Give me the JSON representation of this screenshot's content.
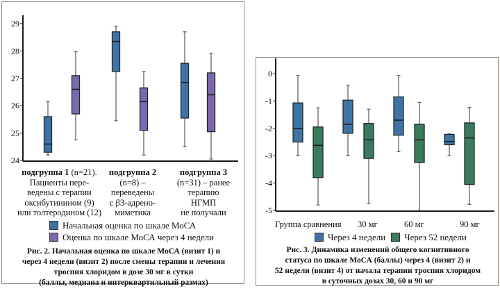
{
  "chart_data": [
    {
      "type": "box",
      "id": "fig2",
      "ylim": [
        24,
        29
      ],
      "yticks": [
        24,
        25,
        26,
        27,
        28,
        29
      ],
      "categories": [
        {
          "bold": "подгруппа 1",
          "lines": [
            " (n=21).",
            "Пациенты пере-",
            "ведены с терапии",
            "оксибутинином (9)",
            "или толтеродином (12)"
          ]
        },
        {
          "bold": "подгруппа 2",
          "lines": [
            "(n=8) –",
            "переведены",
            "с β3-адрено-",
            "миметика"
          ]
        },
        {
          "bold": "подгруппа 3",
          "lines": [
            "(n=31) – ранее",
            "терапию",
            "НГМП",
            "не получали"
          ]
        }
      ],
      "series": [
        {
          "name": "Начальная оценка по шкале МоСА",
          "color": "#3f73a3",
          "boxes": [
            {
              "min": 24.2,
              "q1": 24.3,
              "median": 24.6,
              "q3": 25.6,
              "max": 26.15
            },
            {
              "min": 25.45,
              "q1": 27.25,
              "median": 28.35,
              "q3": 28.7,
              "max": 28.9
            },
            {
              "min": 24.5,
              "q1": 25.55,
              "median": 26.85,
              "q3": 27.55,
              "max": 28.7
            }
          ]
        },
        {
          "name": "Оценка по шкале МоСА через 4 недели",
          "color": "#7b68ae",
          "boxes": [
            {
              "min": 24.75,
              "q1": 25.7,
              "median": 26.6,
              "q3": 27.1,
              "max": 27.97
            },
            {
              "min": 24.2,
              "q1": 25.1,
              "median": 26.15,
              "q3": 26.65,
              "max": 27.25
            },
            {
              "min": 24.05,
              "q1": 25.05,
              "median": 26.4,
              "q3": 27.2,
              "max": 27.92
            }
          ]
        }
      ],
      "caption": [
        "Рис. 2. Начальная оценка по шкале МоСА (визит 1) и",
        "через 4 недели (визит 2) после смены терапии и лечения",
        "троспия хлоридом в дозе 30 мг в сутки",
        "(баллы, медиана и интерквартильный размах)"
      ]
    },
    {
      "type": "box",
      "id": "fig3",
      "ylim": [
        -5,
        0
      ],
      "yticks": [
        0,
        -1,
        -2,
        -3,
        -4,
        -5
      ],
      "categories": [
        "Группа сравнения",
        "30 мг",
        "60 мг",
        "90 мг"
      ],
      "series": [
        {
          "name": "Через 4 недели",
          "color": "#3f73a3",
          "boxes": [
            {
              "min": -3.0,
              "q1": -2.5,
              "median": -2.0,
              "q3": -1.07,
              "max": -0.07
            },
            {
              "min": -3.0,
              "q1": -2.18,
              "median": -1.85,
              "q3": -0.97,
              "max": -0.42
            },
            {
              "min": -2.85,
              "q1": -2.25,
              "median": -1.7,
              "q3": -0.85,
              "max": -0.07
            },
            {
              "min": -3.0,
              "q1": -2.6,
              "median": -2.48,
              "q3": -2.22,
              "max": -2.2
            }
          ]
        },
        {
          "name": "Через 52 недели",
          "color": "#3b7a5c",
          "boxes": [
            {
              "min": -4.8,
              "q1": -3.8,
              "median": -2.62,
              "q3": -1.95,
              "max": -1.25
            },
            {
              "min": -4.75,
              "q1": -3.1,
              "median": -2.42,
              "q3": -1.82,
              "max": -1.3
            },
            {
              "min": -5.0,
              "q1": -3.25,
              "median": -2.42,
              "q3": -1.85,
              "max": -1.05
            },
            {
              "min": -4.78,
              "q1": -4.05,
              "median": -2.35,
              "q3": -1.8,
              "max": -1.23
            }
          ]
        }
      ],
      "caption": [
        "Рис. 3. Динамика изменений общего когнитивного",
        "статуса по шкале МоСА (баллы) через 4 (визит 2) и",
        "52 недели (визит 4) от начала терапии троспия  хлоридом",
        "в суточных дозах 30, 60 и 90 мг"
      ]
    }
  ]
}
